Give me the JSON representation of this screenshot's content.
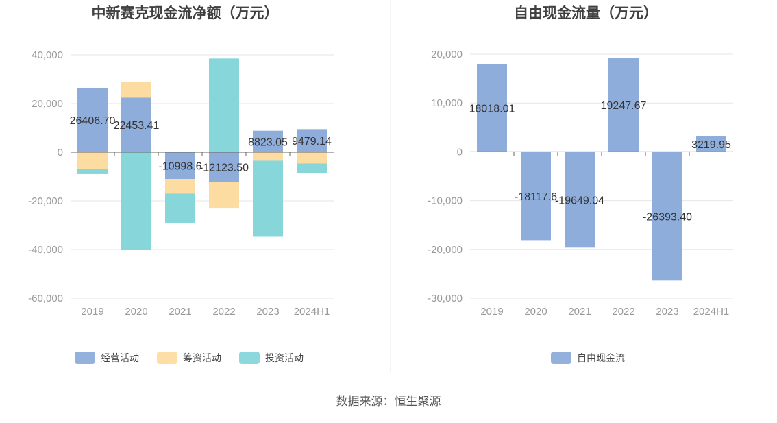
{
  "colors": {
    "operating": "#8EADDA",
    "financing": "#FDDCA2",
    "investing": "#87D6DA",
    "free_cash_flow": "#8EADDA",
    "axis_text": "#999999",
    "title": "#404040",
    "label": "#333333",
    "grid": "#e6e6e6",
    "axis_line": "#666666",
    "divider": "#e8e8e8"
  },
  "source_text": "数据来源：恒生聚源",
  "chart_data": [
    {
      "type": "bar",
      "stacked": true,
      "title": "中新赛克现金流净额（万元）",
      "categories": [
        "2019",
        "2020",
        "2021",
        "2022",
        "2023",
        "2024H1"
      ],
      "ylim": [
        -60000,
        40000
      ],
      "yticks": [
        40000,
        20000,
        0,
        -20000,
        -40000,
        -60000
      ],
      "ytick_labels": [
        "40,000",
        "20,000",
        "0",
        "-20,000",
        "-40,000",
        "-60,000"
      ],
      "grid": true,
      "legend": "bottom-center",
      "series": [
        {
          "name": "经营活动",
          "color_key": "operating",
          "values": [
            26406.7,
            22453.41,
            -10998.6,
            -12123.5,
            8823.05,
            9479.14
          ]
        },
        {
          "name": "筹资活动",
          "color_key": "financing",
          "values": [
            -7000,
            6500,
            -6000,
            -11000,
            -3500,
            -4600
          ]
        },
        {
          "name": "投资活动",
          "color_key": "investing",
          "values": [
            -2000,
            -40000,
            -12000,
            38500,
            -31000,
            -4000
          ]
        }
      ],
      "data_labels": [
        "26406.70",
        "22453.41",
        "-10998.6",
        "-12123.50",
        "8823.05",
        "9479.14"
      ],
      "data_label_series": 0
    },
    {
      "type": "bar",
      "title": "自由现金流量（万元）",
      "categories": [
        "2019",
        "2020",
        "2021",
        "2022",
        "2023",
        "2024H1"
      ],
      "ylim": [
        -30000,
        20000
      ],
      "yticks": [
        20000,
        10000,
        0,
        -10000,
        -20000,
        -30000
      ],
      "ytick_labels": [
        "20,000",
        "10,000",
        "0",
        "-10,000",
        "-20,000",
        "-30,000"
      ],
      "grid": true,
      "legend": "bottom-center",
      "series": [
        {
          "name": "自由现金流",
          "color_key": "free_cash_flow",
          "values": [
            18018.01,
            -18117.6,
            -19649.04,
            19247.67,
            -26393.4,
            3219.95
          ]
        }
      ],
      "data_labels": [
        "18018.01",
        "-18117.6",
        "-19649.04",
        "19247.67",
        "-26393.40",
        "3219.95"
      ],
      "data_label_series": 0
    }
  ]
}
